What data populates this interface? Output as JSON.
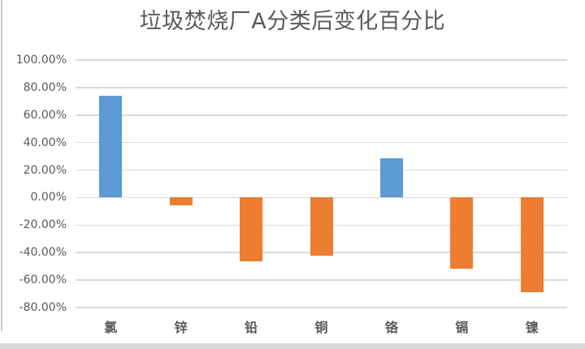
{
  "chart_data": {
    "type": "bar",
    "title": "垃圾焚烧厂A分类后变化百分比",
    "categories": [
      "氯",
      "锌",
      "铅",
      "铜",
      "铬",
      "镉",
      "镍"
    ],
    "values": [
      74.3,
      -5.9,
      -46.1,
      -42.5,
      28.7,
      -51.9,
      -68.8
    ],
    "values_unit": "percent",
    "bar_colors": [
      "#5B9BD5",
      "#ED7D31",
      "#ED7D31",
      "#ED7D31",
      "#5B9BD5",
      "#ED7D31",
      "#ED7D31"
    ],
    "ylim": [
      -80,
      100
    ],
    "ytick_step": 20,
    "ytick_labels": [
      "100.00%",
      "80.00%",
      "60.00%",
      "40.00%",
      "20.00%",
      "0.00%",
      "-20.00%",
      "-40.00%",
      "-60.00%",
      "-80.00%"
    ],
    "xlabel": "",
    "ylabel": "",
    "grid": true,
    "legend": "none",
    "palette": {
      "positive_bar": "#5B9BD5",
      "negative_bar": "#ED7D31",
      "gridline": "#D9D9D9",
      "text": "#595959"
    }
  }
}
